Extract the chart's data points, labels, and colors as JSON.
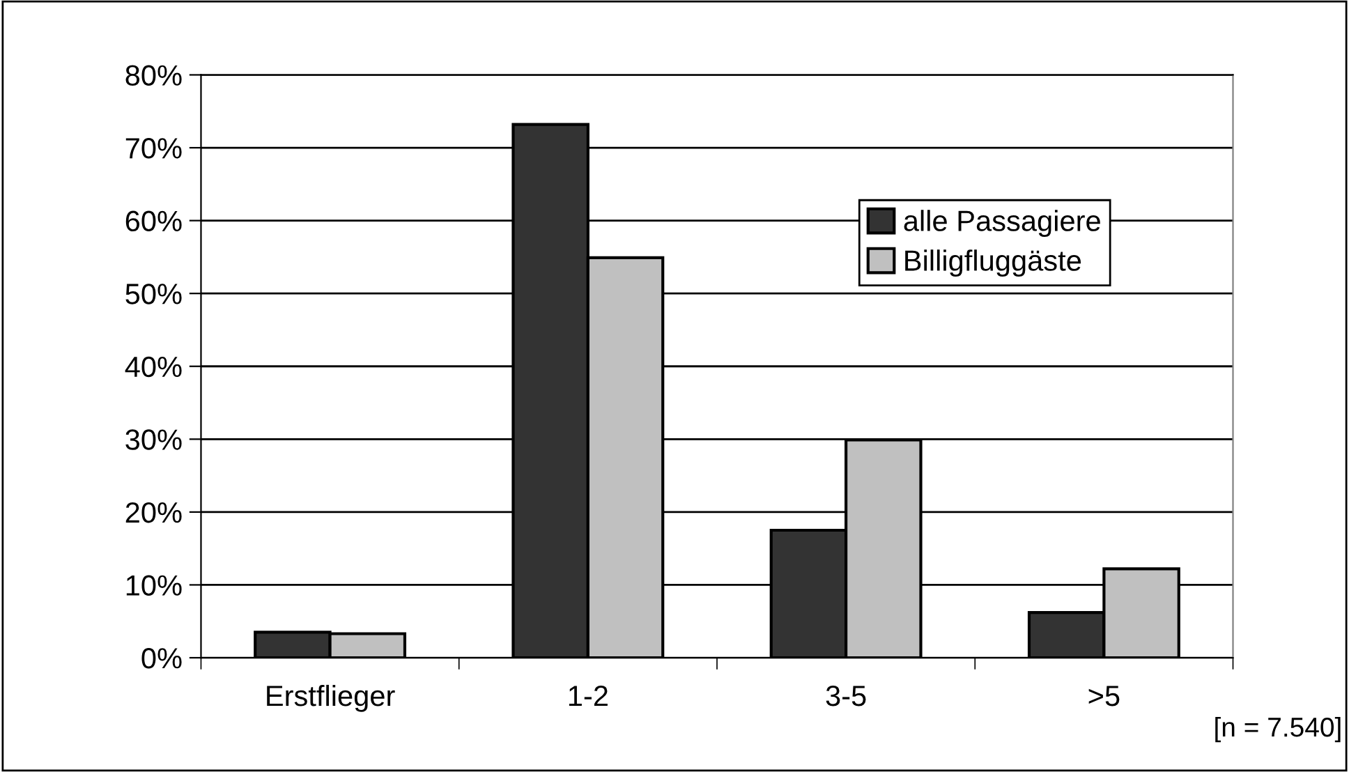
{
  "chart_data": {
    "type": "bar",
    "categories": [
      "Erstflieger",
      "1-2",
      "3-5",
      ">5"
    ],
    "series": [
      {
        "name": "alle Passagiere",
        "color": "#333333",
        "values": [
          3.5,
          73.2,
          17.5,
          6.2
        ]
      },
      {
        "name": "Billigfluggäste",
        "color": "#c0c0c0",
        "values": [
          3.3,
          54.9,
          29.9,
          12.2
        ]
      }
    ],
    "ylim": [
      0,
      80
    ],
    "yticks": [
      {
        "value": 0,
        "label": "0%"
      },
      {
        "value": 10,
        "label": "10%"
      },
      {
        "value": 20,
        "label": "20%"
      },
      {
        "value": 30,
        "label": "30%"
      },
      {
        "value": 40,
        "label": "40%"
      },
      {
        "value": 50,
        "label": "50%"
      },
      {
        "value": 60,
        "label": "60%"
      },
      {
        "value": 70,
        "label": "70%"
      },
      {
        "value": 80,
        "label": "80%"
      }
    ],
    "grid": "y",
    "legend": "top right",
    "annotations": [
      "[n = 7.540]"
    ]
  }
}
